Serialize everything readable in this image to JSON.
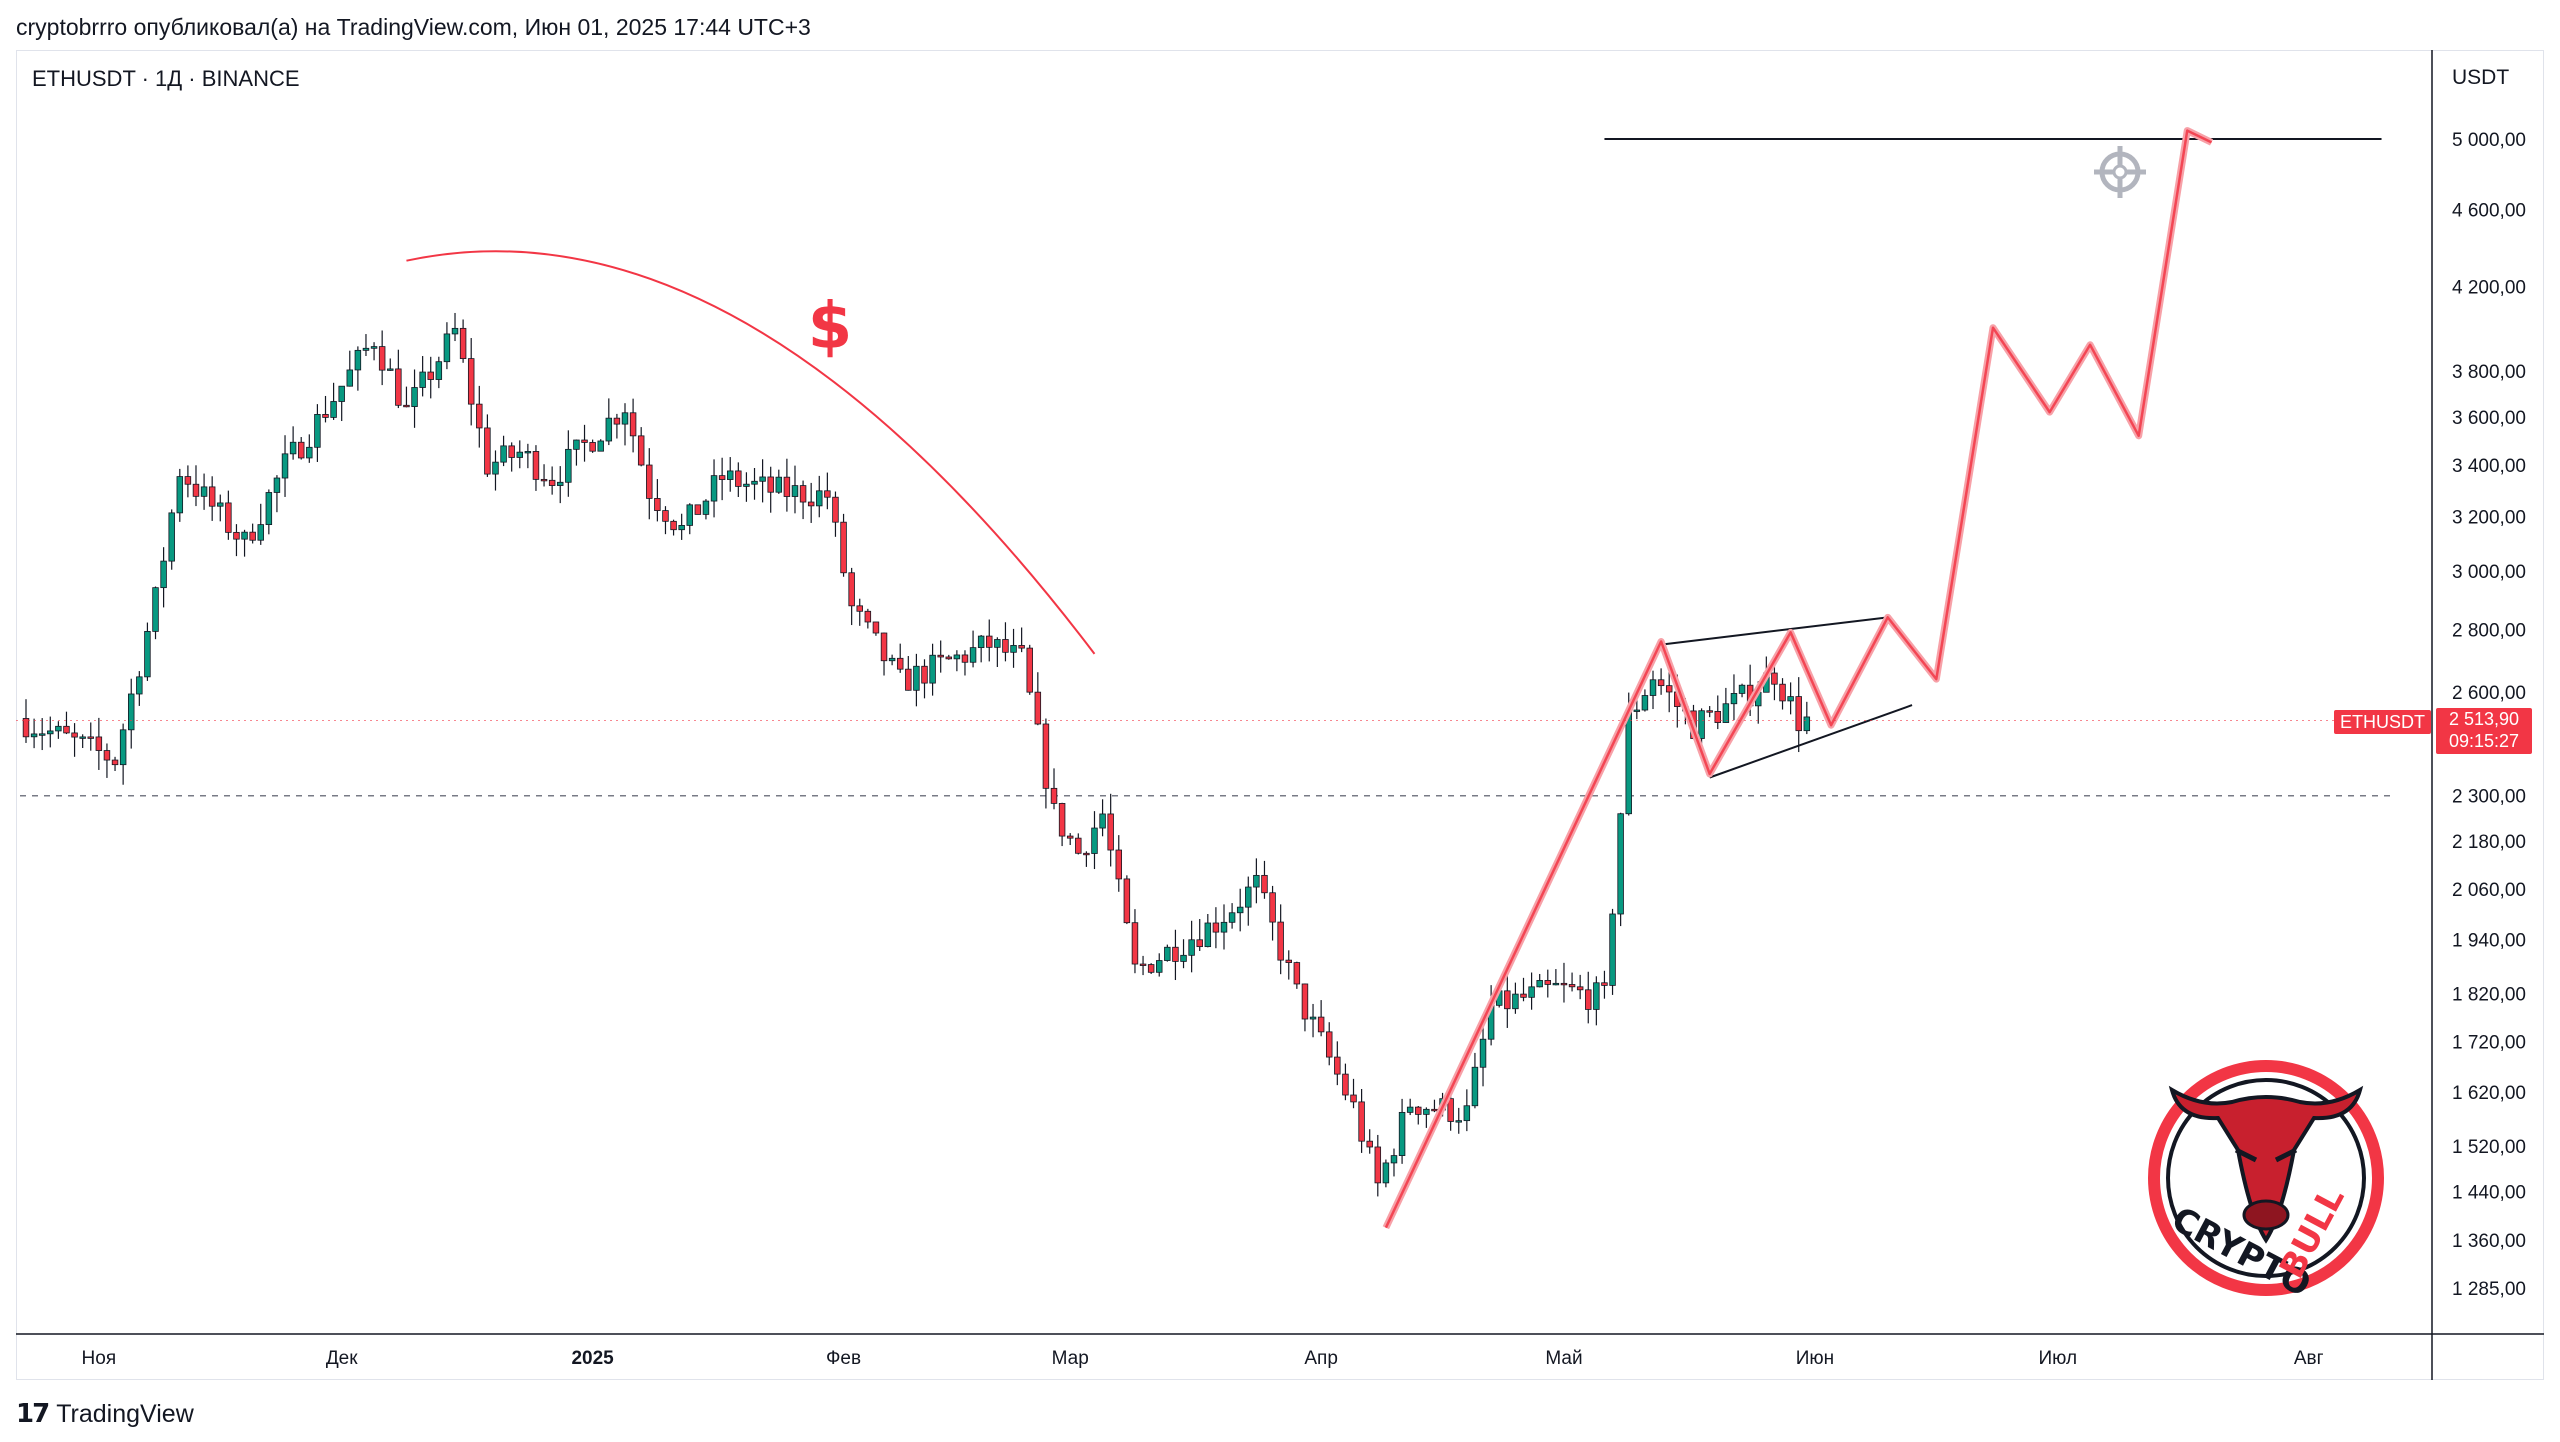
{
  "header": {
    "publish_line": "cryptobrrro опубликовал(а) на TradingView.com, Июн 01, 2025 17:44 UTC+3"
  },
  "chart_info": {
    "symbol_line": "ETHUSDT · 1Д · BINANCE",
    "currency": "USDT"
  },
  "price_badge": {
    "symbol": "ETHUSDT",
    "price": "2 513,90",
    "countdown": "09:15:27"
  },
  "footer": {
    "brand": "TradingView"
  },
  "annotation": {
    "dollar_sign": "$"
  },
  "logo": {
    "text_left": "CRYPTO",
    "text_right": "BULL"
  },
  "colors": {
    "up": "#089981",
    "down": "#f23645",
    "projection": "#f23645",
    "projection_light": "#f7a1a8"
  },
  "chart_data": {
    "type": "candlestick",
    "y_scale": "log",
    "ylim": [
      1240,
      5200
    ],
    "y_ticks": [
      "5 000,00",
      "4 600,00",
      "4 200,00",
      "3 800,00",
      "3 600,00",
      "3 400,00",
      "3 200,00",
      "3 000,00",
      "2 800,00",
      "2 600,00",
      "2 300,00",
      "2 180,00",
      "2 060,00",
      "1 940,00",
      "1 820,00",
      "1 720,00",
      "1 620,00",
      "1 520,00",
      "1 440,00",
      "1 360,00",
      "1 285,00"
    ],
    "y_tick_values": [
      5000,
      4600,
      4200,
      3800,
      3600,
      3400,
      3200,
      3000,
      2800,
      2600,
      2300,
      2180,
      2060,
      1940,
      1820,
      1720,
      1620,
      1520,
      1440,
      1360,
      1285
    ],
    "x_ticks": [
      "Ноя",
      "Дек",
      "2025",
      "Фев",
      "Мар",
      "Апр",
      "Май",
      "Июн",
      "Июл",
      "Авг"
    ],
    "x_tick_dates": [
      "2024-11-01",
      "2024-12-01",
      "2025-01-01",
      "2025-02-01",
      "2025-03-01",
      "2025-04-01",
      "2025-05-01",
      "2025-06-01",
      "2025-07-01",
      "2025-08-01"
    ],
    "last_price": 2513.9,
    "support_level": 2300,
    "target_level": 5000,
    "anchors": [
      {
        "date": "2024-10-23",
        "price": 2520
      },
      {
        "date": "2024-11-04",
        "price": 2400
      },
      {
        "date": "2024-11-09",
        "price": 2900
      },
      {
        "date": "2024-11-12",
        "price": 3380
      },
      {
        "date": "2024-11-20",
        "price": 3100
      },
      {
        "date": "2024-11-25",
        "price": 3400
      },
      {
        "date": "2024-11-29",
        "price": 3580
      },
      {
        "date": "2024-12-06",
        "price": 3950
      },
      {
        "date": "2024-12-10",
        "price": 3620
      },
      {
        "date": "2024-12-16",
        "price": 3980
      },
      {
        "date": "2024-12-20",
        "price": 3400
      },
      {
        "date": "2024-12-24",
        "price": 3450
      },
      {
        "date": "2024-12-28",
        "price": 3350
      },
      {
        "date": "2025-01-06",
        "price": 3650
      },
      {
        "date": "2025-01-09",
        "price": 3300
      },
      {
        "date": "2025-01-13",
        "price": 3150
      },
      {
        "date": "2025-01-18",
        "price": 3350
      },
      {
        "date": "2025-01-24",
        "price": 3300
      },
      {
        "date": "2025-01-31",
        "price": 3280
      },
      {
        "date": "2025-02-03",
        "price": 2870
      },
      {
        "date": "2025-02-09",
        "price": 2630
      },
      {
        "date": "2025-02-20",
        "price": 2750
      },
      {
        "date": "2025-02-24",
        "price": 2700
      },
      {
        "date": "2025-02-28",
        "price": 2250
      },
      {
        "date": "2025-03-03",
        "price": 2150
      },
      {
        "date": "2025-03-06",
        "price": 2250
      },
      {
        "date": "2025-03-10",
        "price": 1870
      },
      {
        "date": "2025-03-20",
        "price": 1980
      },
      {
        "date": "2025-03-25",
        "price": 2070
      },
      {
        "date": "2025-03-30",
        "price": 1820
      },
      {
        "date": "2025-04-06",
        "price": 1590
      },
      {
        "date": "2025-04-09",
        "price": 1450
      },
      {
        "date": "2025-04-13",
        "price": 1600
      },
      {
        "date": "2025-04-20",
        "price": 1580
      },
      {
        "date": "2025-04-23",
        "price": 1790
      },
      {
        "date": "2025-05-01",
        "price": 1830
      },
      {
        "date": "2025-05-07",
        "price": 1810
      },
      {
        "date": "2025-05-10",
        "price": 2520
      },
      {
        "date": "2025-05-13",
        "price": 2650
      },
      {
        "date": "2025-05-18",
        "price": 2500
      },
      {
        "date": "2025-05-24",
        "price": 2580
      },
      {
        "date": "2025-05-28",
        "price": 2660
      },
      {
        "date": "2025-05-31",
        "price": 2514
      }
    ],
    "projection_path": [
      {
        "date": "2025-04-09",
        "price": 1380
      },
      {
        "date": "2025-05-13",
        "price": 2760
      },
      {
        "date": "2025-05-19",
        "price": 2360
      },
      {
        "date": "2025-05-29",
        "price": 2790
      },
      {
        "date": "2025-06-03",
        "price": 2500
      },
      {
        "date": "2025-06-10",
        "price": 2840
      },
      {
        "date": "2025-06-16",
        "price": 2640
      },
      {
        "date": "2025-06-23",
        "price": 4000
      },
      {
        "date": "2025-06-30",
        "price": 3620
      },
      {
        "date": "2025-07-05",
        "price": 3920
      },
      {
        "date": "2025-07-11",
        "price": 3520
      },
      {
        "date": "2025-07-17",
        "price": 5050
      },
      {
        "date": "2025-07-20",
        "price": 4980
      }
    ],
    "pennant_upper": [
      {
        "date": "2025-05-13",
        "price": 2750
      },
      {
        "date": "2025-06-10",
        "price": 2840
      }
    ],
    "pennant_lower": [
      {
        "date": "2025-05-19",
        "price": 2350
      },
      {
        "date": "2025-06-13",
        "price": 2560
      }
    ],
    "target_line": {
      "from": "2025-05-06",
      "to": "2025-08-10",
      "price": 5000
    },
    "arc": [
      {
        "date": "2024-12-09",
        "price": 4330
      },
      {
        "date": "2025-01-20",
        "price": 4020
      },
      {
        "date": "2025-03-04",
        "price": 2720
      }
    ]
  }
}
